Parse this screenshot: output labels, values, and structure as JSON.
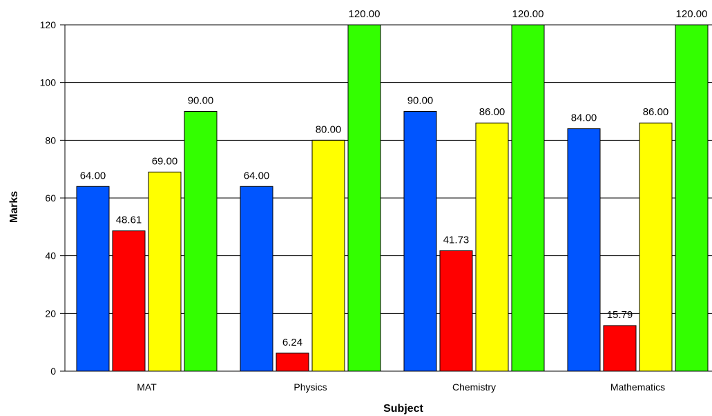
{
  "chart_data": {
    "type": "bar",
    "xlabel": "Subject",
    "ylabel": "Marks",
    "categories": [
      "MAT",
      "Physics",
      "Chemistry",
      "Mathematics"
    ],
    "ylim": [
      0,
      120
    ],
    "yticks": [
      0,
      20,
      40,
      60,
      80,
      100,
      120
    ],
    "grid": true,
    "legend": "none",
    "series": [
      {
        "color": "#0055ff",
        "values": [
          64.0,
          64.0,
          90.0,
          84.0
        ],
        "labels": [
          "64.00",
          "64.00",
          "90.00",
          "84.00"
        ]
      },
      {
        "color": "#ff0000",
        "values": [
          48.61,
          6.24,
          41.73,
          15.79
        ],
        "labels": [
          "48.61",
          "6.24",
          "41.73",
          "15.79"
        ]
      },
      {
        "color": "#ffff00",
        "values": [
          69.0,
          80.0,
          86.0,
          86.0
        ],
        "labels": [
          "69.00",
          "80.00",
          "86.00",
          "86.00"
        ]
      },
      {
        "color": "#33ff00",
        "values": [
          90.0,
          120.0,
          120.0,
          120.0
        ],
        "labels": [
          "90.00",
          "120.00",
          "120.00",
          "120.00"
        ]
      }
    ]
  }
}
